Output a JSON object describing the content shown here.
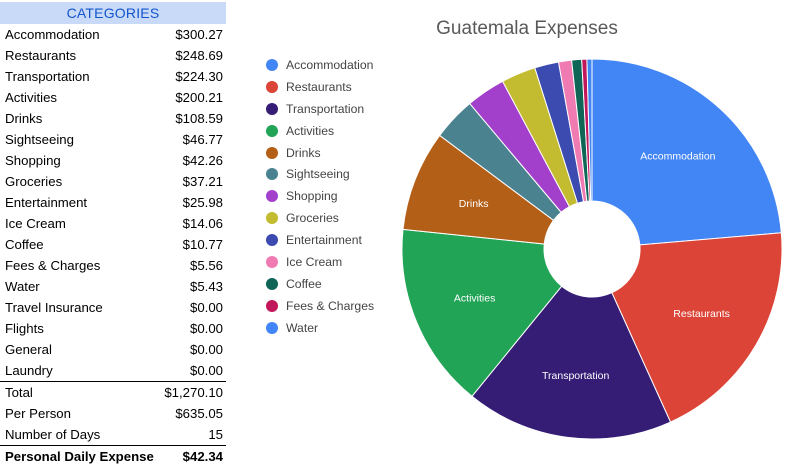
{
  "table": {
    "header": "CATEGORIES",
    "rows": [
      {
        "label": "Accommodation",
        "value": "$300.27"
      },
      {
        "label": "Restaurants",
        "value": "$248.69"
      },
      {
        "label": "Transportation",
        "value": "$224.30"
      },
      {
        "label": "Activities",
        "value": "$200.21"
      },
      {
        "label": "Drinks",
        "value": "$108.59"
      },
      {
        "label": "Sightseeing",
        "value": "$46.77"
      },
      {
        "label": "Shopping",
        "value": "$42.26"
      },
      {
        "label": "Groceries",
        "value": "$37.21"
      },
      {
        "label": "Entertainment",
        "value": "$25.98"
      },
      {
        "label": "Ice Cream",
        "value": "$14.06"
      },
      {
        "label": "Coffee",
        "value": "$10.77"
      },
      {
        "label": "Fees & Charges",
        "value": "$5.56"
      },
      {
        "label": "Water",
        "value": "$5.43"
      },
      {
        "label": "Travel Insurance",
        "value": "$0.00"
      },
      {
        "label": "Flights",
        "value": "$0.00"
      },
      {
        "label": "General",
        "value": "$0.00"
      },
      {
        "label": "Laundry",
        "value": "$0.00"
      }
    ],
    "summary": [
      {
        "label": "Total",
        "value": "$1,270.10"
      },
      {
        "label": "Per Person",
        "value": "$635.05"
      },
      {
        "label": "Number of Days",
        "value": "15"
      }
    ],
    "final": {
      "label": "Personal Daily Expense",
      "value": "$42.34"
    }
  },
  "chart_data": {
    "type": "pie",
    "title": "Guatemala Expenses",
    "donut": true,
    "legend_position": "left",
    "categories": [
      "Accommodation",
      "Restaurants",
      "Transportation",
      "Activities",
      "Drinks",
      "Sightseeing",
      "Shopping",
      "Groceries",
      "Entertainment",
      "Ice Cream",
      "Coffee",
      "Fees & Charges",
      "Water"
    ],
    "values": [
      300.27,
      248.69,
      224.3,
      200.21,
      108.59,
      46.77,
      42.26,
      37.21,
      25.98,
      14.06,
      10.77,
      5.56,
      5.43
    ],
    "colors": [
      "#4285f4",
      "#db4437",
      "#351c75",
      "#21a456",
      "#b45f17",
      "#4a8290",
      "#a23fcb",
      "#c3bb30",
      "#3c4bb0",
      "#f07ab2",
      "#0f6657",
      "#c2185b",
      "#4285f4"
    ],
    "slice_labels": [
      "Accommodation",
      "Restaurants",
      "Transportation",
      "Activities",
      "Drinks",
      "",
      "",
      "",
      "",
      "",
      "",
      "",
      ""
    ]
  }
}
